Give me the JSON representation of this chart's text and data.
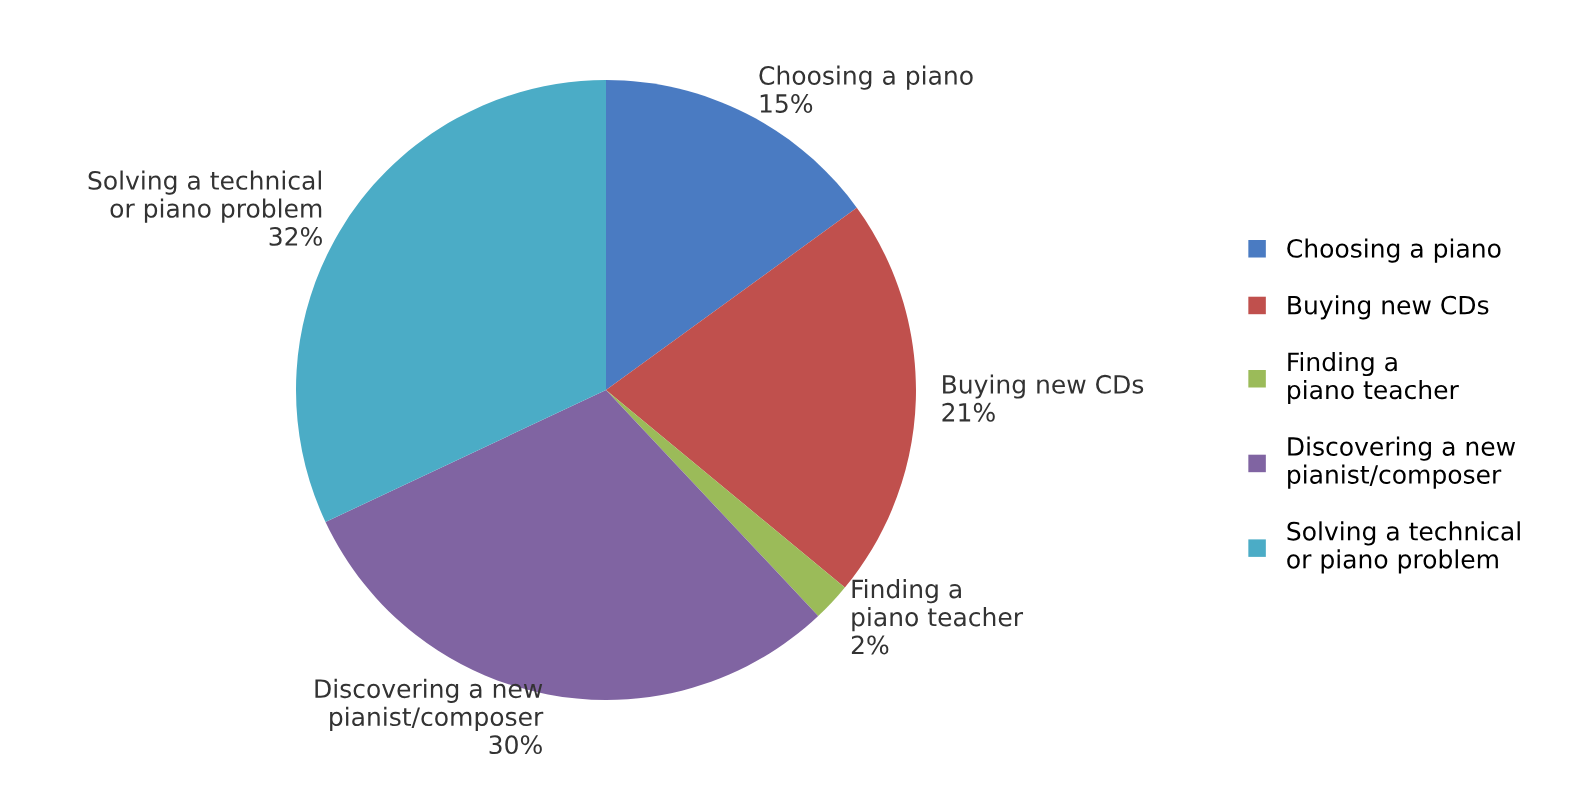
{
  "chart_data": {
    "type": "pie",
    "categories": [
      "Choosing a piano",
      "Buying new CDs",
      "Finding a piano teacher",
      "Discovering a new pianist/composer",
      "Solving a technical or piano problem"
    ],
    "values": [
      15,
      21,
      2,
      30,
      32
    ],
    "value_labels": [
      "15%",
      "21%",
      "2%",
      "30%",
      "32%"
    ],
    "colors": [
      "#4a7bc2",
      "#c0504d",
      "#9bbb59",
      "#8064a2",
      "#4bacc6"
    ],
    "legend": "right"
  }
}
